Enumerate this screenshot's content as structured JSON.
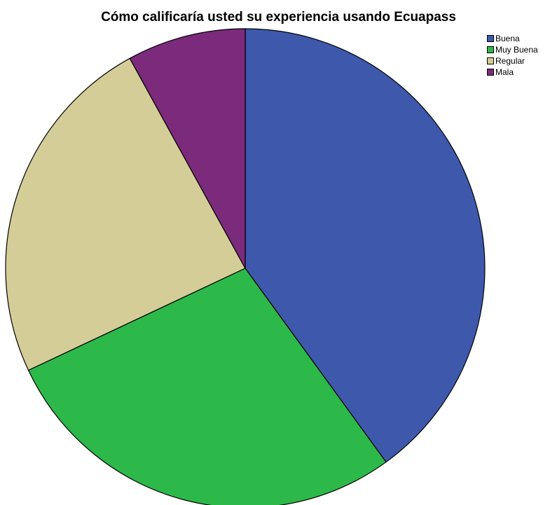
{
  "chart_data": {
    "type": "pie",
    "title": "Cómo calificaría usted su experiencia usando Ecuapass",
    "categories": [
      "Buena",
      "Muy Buena",
      "Regular",
      "Mala"
    ],
    "values": [
      40,
      28,
      24,
      8
    ],
    "unit": "%",
    "colors": [
      "#3e58ac",
      "#2db84a",
      "#d5cd98",
      "#7c2a7c"
    ],
    "start_angle": "12 o'clock",
    "direction": "clockwise",
    "legend_position": "top-right",
    "slice_labels": false
  }
}
